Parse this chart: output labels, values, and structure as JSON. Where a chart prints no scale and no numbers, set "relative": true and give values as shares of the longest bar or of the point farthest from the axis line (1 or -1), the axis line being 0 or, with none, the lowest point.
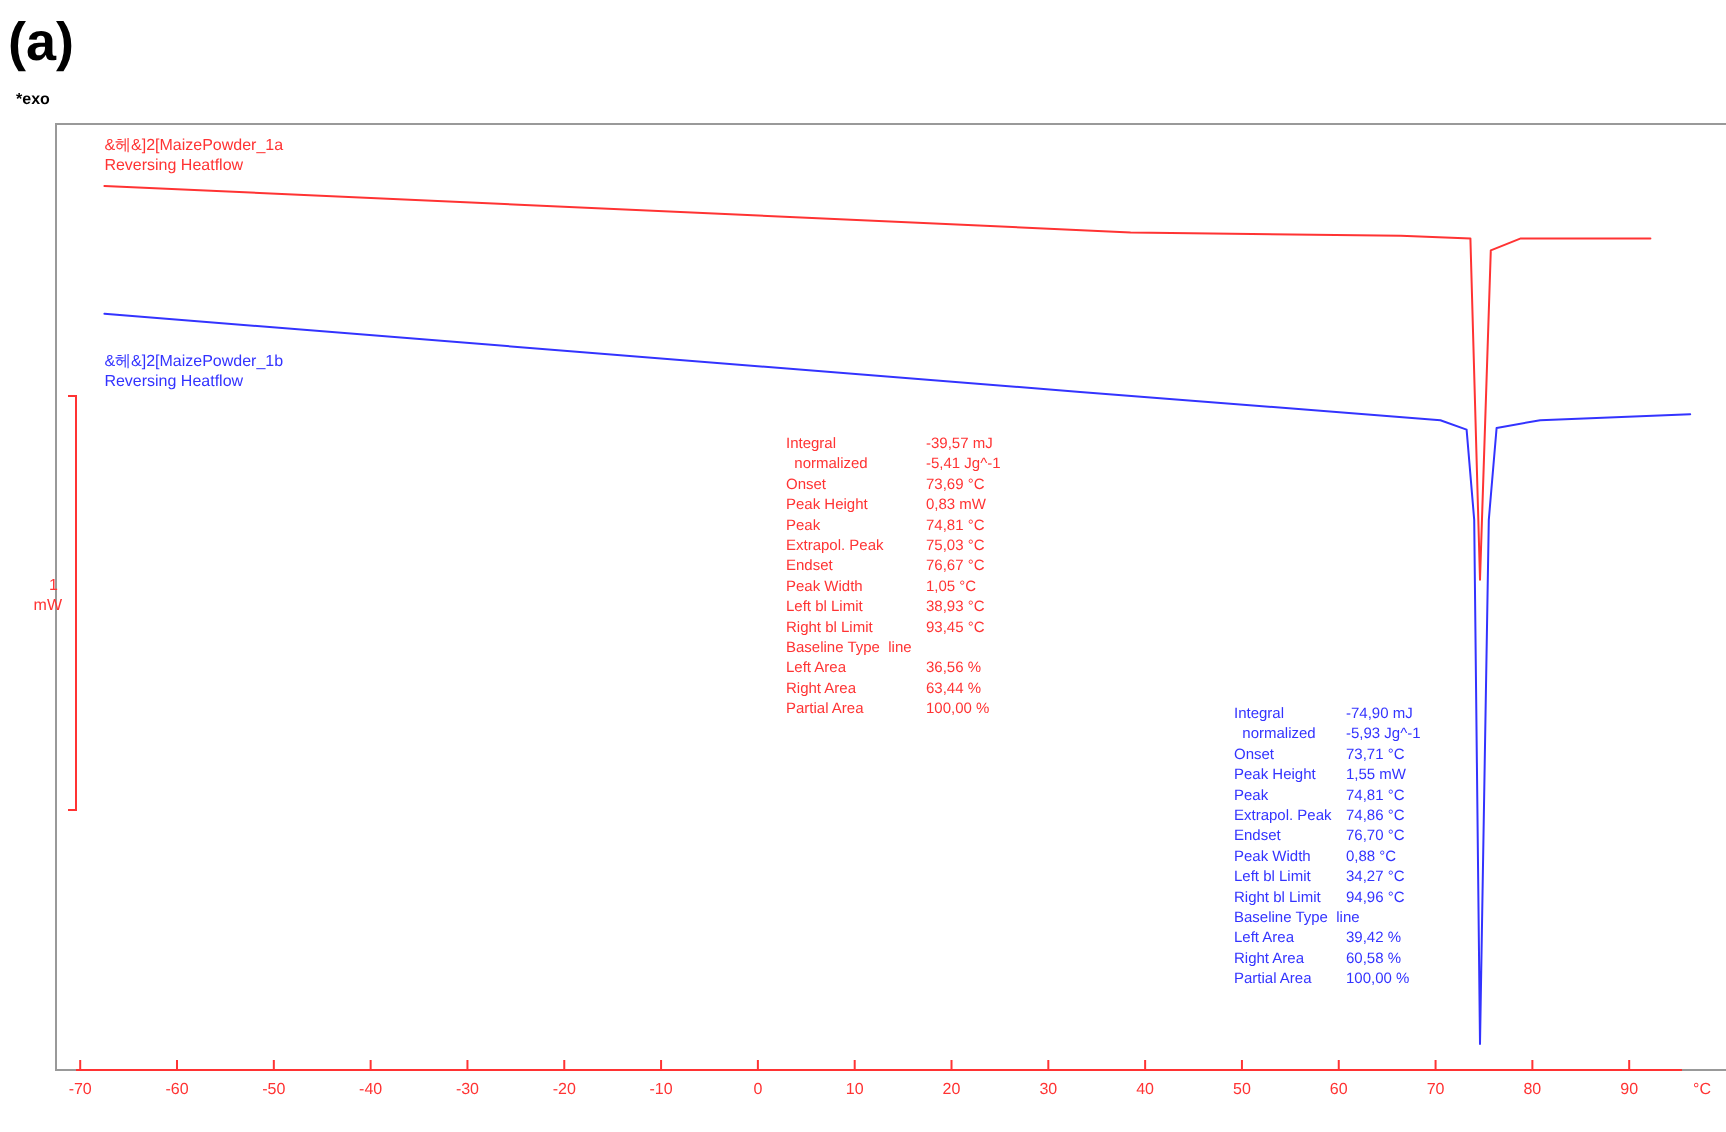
{
  "chart_data": {
    "type": "line",
    "title": "(a)",
    "relative": true,
    "xlabel": "°C",
    "xlim": [
      -72.5,
      100
    ],
    "xticks": [
      -70,
      -60,
      -50,
      -40,
      -30,
      -20,
      -10,
      0,
      10,
      20,
      30,
      40,
      50,
      60,
      70,
      80,
      90
    ],
    "marker": "none",
    "line_style": "solid",
    "series": [
      {
        "name": "&헤&]2[MaizePowder_1a\nReversing Heatflow",
        "color": "#ff3333",
        "x": [
          -67.5,
          38.5,
          66.4,
          73.6,
          74.6,
          75.7,
          78.8,
          92.2
        ],
        "values": [
          1.0,
          0.946,
          0.942,
          0.939,
          0.541,
          0.925,
          0.939,
          0.939
        ]
      },
      {
        "name": "&헤&]2[MaizePowder_1b\nReversing Heatflow",
        "color": "#3333ff",
        "x": [
          -67.5,
          33.3,
          70.5,
          73.2,
          74.0,
          74.6,
          75.5,
          76.3,
          80.8,
          96.3
        ],
        "values": [
          0.851,
          0.76,
          0.727,
          0.716,
          0.611,
          0.0,
          0.611,
          0.718,
          0.727,
          0.734
        ]
      }
    ],
    "annotations": [
      "*exo",
      "1\nmW",
      "Integral\t-39,57 mJ\n  normalized\t-5,41 Jg^-1\nOnset\t73,69 °C\nPeak Height\t0,83 mW\nPeak\t74,81 °C\nExtrapol. Peak\t75,03 °C\nEndset\t76,67 °C\nPeak Width\t1,05 °C\nLeft bl Limit\t38,93 °C\nRight bl Limit\t93,45 °C\nBaseline Type  line\nLeft Area\t36,56 %\nRight Area\t63,44 %\nPartial Area\t100,00 %",
      "Integral\t-74,90 mJ\n  normalized\t-5,93 Jg^-1\nOnset\t73,71 °C\nPeak Height\t1,55 mW\nPeak\t74,81 °C\nExtrapol. Peak\t74,86 °C\nEndset\t76,70 °C\nPeak Width\t0,88 °C\nLeft bl Limit\t34,27 °C\nRight bl Limit\t94,96 °C\nBaseline Type  line\nLeft Area\t39,42 %\nRight Area\t60,58 %\nPartial Area\t100,00 %"
    ]
  }
}
